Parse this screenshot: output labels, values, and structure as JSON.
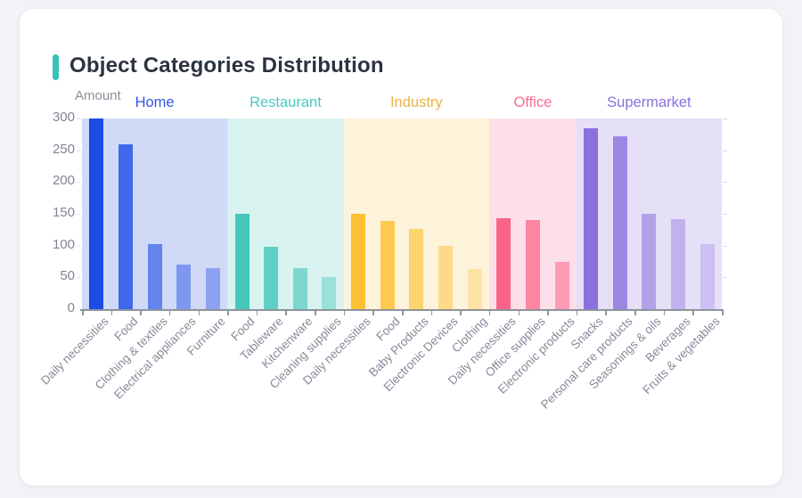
{
  "card": {
    "title": "Object Categories Distribution",
    "accent_color": "#35c4b5"
  },
  "chart_data": {
    "type": "bar",
    "title": "Object Categories Distribution",
    "xlabel": "",
    "ylabel": "Amount",
    "ylim": [
      0,
      300
    ],
    "yticks": [
      0,
      50,
      100,
      150,
      200,
      250,
      300
    ],
    "grid": false,
    "legend_position": "group headers above bands",
    "groups": [
      {
        "name": "Home",
        "label_color": "#3355e5",
        "band_color": "#d0daf7",
        "items": [
          {
            "label": "Daily necessities",
            "value": 300,
            "color": "#1d4ce4"
          },
          {
            "label": "Food",
            "value": 260,
            "color": "#3f68ea"
          },
          {
            "label": "Clothing & textiles",
            "value": 103,
            "color": "#6284ec"
          },
          {
            "label": "Electrical appliances",
            "value": 70,
            "color": "#7e97f0"
          },
          {
            "label": "Furniture",
            "value": 65,
            "color": "#8ba2f1"
          }
        ]
      },
      {
        "name": "Restaurant",
        "label_color": "#4acabe",
        "band_color": "#d8f3f0",
        "items": [
          {
            "label": "Food",
            "value": 150,
            "color": "#45c8bc"
          },
          {
            "label": "Tableware",
            "value": 98,
            "color": "#60d0c5"
          },
          {
            "label": "Kitchenware",
            "value": 65,
            "color": "#7cd8cf"
          },
          {
            "label": "Cleaning supplies",
            "value": 51,
            "color": "#9ae1da"
          }
        ]
      },
      {
        "name": "Industry",
        "label_color": "#eab344",
        "band_color": "#fdf3da",
        "items": [
          {
            "label": "Daily necessities",
            "value": 150,
            "color": "#fcc133"
          },
          {
            "label": "Food",
            "value": 139,
            "color": "#fdca51"
          },
          {
            "label": "Baby Products",
            "value": 126,
            "color": "#fdd36e"
          },
          {
            "label": "Electronic Devices",
            "value": 100,
            "color": "#fdda87"
          },
          {
            "label": "Clothing",
            "value": 63,
            "color": "#fee3a4"
          }
        ]
      },
      {
        "name": "Office",
        "label_color": "#fa6d92",
        "band_color": "#fcdfe8",
        "items": [
          {
            "label": "Daily necessities",
            "value": 143,
            "color": "#fb6388"
          },
          {
            "label": "Office supplies",
            "value": 140,
            "color": "#fc85a0"
          },
          {
            "label": "Electronic products",
            "value": 75,
            "color": "#fd9cb4"
          }
        ]
      },
      {
        "name": "Supermarket",
        "label_color": "#8a6fe0",
        "band_color": "#e5e0f7",
        "items": [
          {
            "label": "Snacks",
            "value": 285,
            "color": "#8b70e0"
          },
          {
            "label": "Personal care products",
            "value": 272,
            "color": "#9d87e5"
          },
          {
            "label": "Seasonings & oils",
            "value": 150,
            "color": "#b2a2ea"
          },
          {
            "label": "Beverages",
            "value": 141,
            "color": "#c0b2ee"
          },
          {
            "label": "Fruits & vegetables",
            "value": 102,
            "color": "#cbc0f1"
          }
        ]
      }
    ]
  }
}
